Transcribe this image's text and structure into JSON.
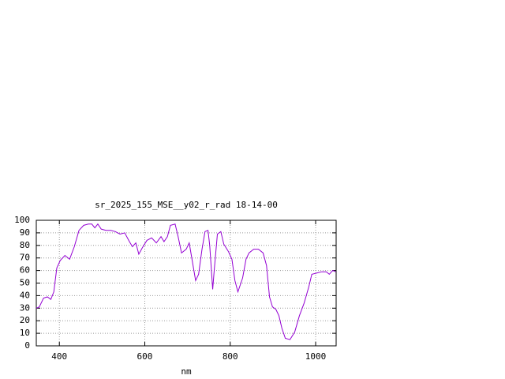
{
  "chart_data": {
    "type": "line",
    "title": "sr_2025_155_MSE__y02_r_rad 18-14-00",
    "x_label": "nm",
    "xlim": [
      346,
      1048
    ],
    "ylim": [
      0,
      100
    ],
    "xticks": [
      400,
      600,
      800,
      1000
    ],
    "yticks": [
      0,
      10,
      20,
      30,
      40,
      50,
      60,
      70,
      80,
      90,
      100
    ],
    "grid": true,
    "series": [
      {
        "color": "#9400d3",
        "x": [
          346,
          353,
          363,
          372,
          380,
          387,
          394,
          402,
          413,
          424,
          435,
          446,
          457,
          468,
          476,
          483,
          490,
          498,
          509,
          520,
          531,
          542,
          553,
          564,
          571,
          579,
          586,
          594,
          605,
          616,
          627,
          638,
          645,
          653,
          660,
          671,
          678,
          686,
          697,
          704,
          711,
          719,
          726,
          734,
          741,
          748,
          752,
          759,
          763,
          770,
          778,
          785,
          796,
          804,
          811,
          818,
          829,
          837,
          844,
          855,
          866,
          877,
          885,
          892,
          899,
          907,
          914,
          921,
          929,
          940,
          951,
          962,
          973,
          984,
          991,
          1003,
          1014,
          1025,
          1032,
          1040,
          1047
        ],
        "values": [
          30,
          31,
          38,
          39,
          37,
          43,
          62,
          68,
          72,
          69,
          79,
          92,
          96,
          97,
          97,
          94,
          97,
          93,
          92,
          92,
          91,
          89,
          90,
          83,
          79,
          82,
          73,
          78,
          84,
          86,
          82,
          87,
          83,
          87,
          96,
          97,
          87,
          74,
          77,
          82,
          68,
          52,
          57,
          77,
          91,
          92,
          80,
          45,
          62,
          89,
          91,
          81,
          75,
          69,
          52,
          43,
          54,
          69,
          74,
          77,
          77,
          74,
          64,
          39,
          31,
          29,
          24,
          14,
          6,
          5,
          11,
          24,
          34,
          47,
          57,
          58,
          59,
          59,
          57,
          60,
          59
        ]
      }
    ]
  }
}
